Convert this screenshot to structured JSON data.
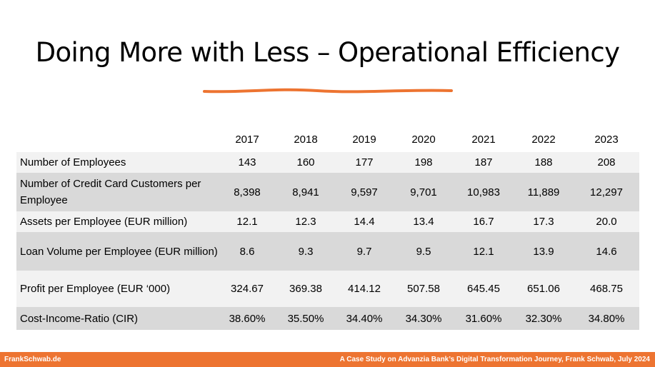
{
  "slide": {
    "title": "Doing More with Less – Operational Efficiency",
    "accent_color": "#ed7431"
  },
  "table": {
    "years": [
      "2017",
      "2018",
      "2019",
      "2020",
      "2021",
      "2022",
      "2023"
    ],
    "rows": [
      {
        "label": "Number of Employees",
        "values": [
          "143",
          "160",
          "177",
          "198",
          "187",
          "188",
          "208"
        ]
      },
      {
        "label": "Number of Credit Card Customers per Employee",
        "values": [
          "8,398",
          "8,941",
          "9,597",
          "9,701",
          "10,983",
          "11,889",
          "12,297"
        ]
      },
      {
        "label": "Assets per Employee (EUR million)",
        "values": [
          "12.1",
          "12.3",
          "14.4",
          "13.4",
          "16.7",
          "17.3",
          "20.0"
        ]
      },
      {
        "label": "Loan Volume per Employee (EUR million)",
        "values": [
          "8.6",
          "9.3",
          "9.7",
          "9.5",
          "12.1",
          "13.9",
          "14.6"
        ]
      },
      {
        "label": "Profit per Employee (EUR ‘000)",
        "values": [
          "324.67",
          "369.38",
          "414.12",
          "507.58",
          "645.45",
          "651.06",
          "468.75"
        ]
      },
      {
        "label": "Cost-Income-Ratio (CIR)",
        "values": [
          "38.60%",
          "35.50%",
          "34.40%",
          "34.30%",
          "31.60%",
          "32.30%",
          "34.80%"
        ]
      }
    ]
  },
  "footer": {
    "left": "FrankSchwab.de",
    "right": "A Case Study on Advanzia Bank’s Digital Transformation Journey, Frank Schwab, July 2024"
  }
}
